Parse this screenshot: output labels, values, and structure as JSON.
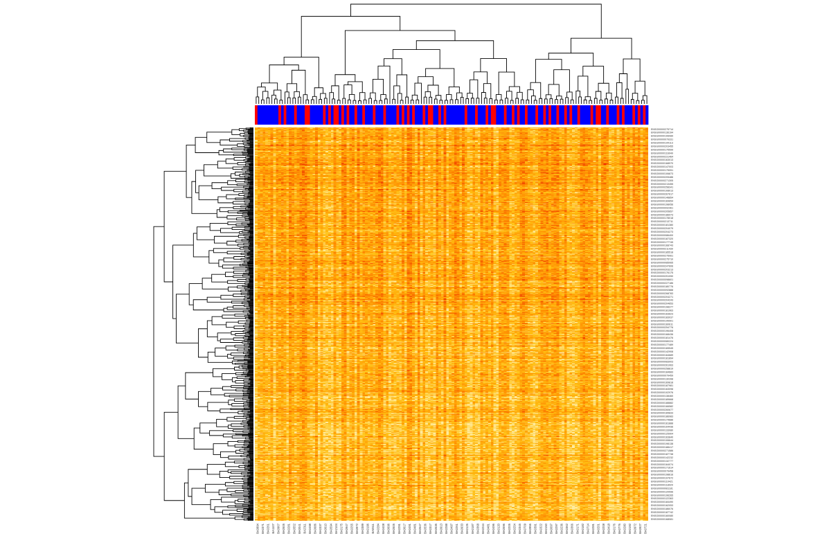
{
  "chart_data": {
    "type": "heatmap",
    "title": "",
    "xlabel": "",
    "ylabel": "",
    "n_columns": 150,
    "n_rows": 600,
    "row_dendrogram": true,
    "column_dendrogram": true,
    "colormap": [
      "#ff0000",
      "#ff7a00",
      "#ffa500",
      "#ffd27a",
      "#fff2cc"
    ],
    "annotation_bar_colors": {
      "group_a": "#ff0000",
      "group_b": "#0000ff"
    },
    "annotation_red_columns": [
      0,
      9,
      11,
      15,
      19,
      20,
      26,
      28,
      30,
      31,
      33,
      35,
      38,
      41,
      45,
      49,
      54,
      56,
      58,
      60,
      64,
      66,
      67,
      70,
      72,
      80,
      84,
      88,
      90,
      91,
      95,
      98,
      100,
      103,
      107,
      110,
      112,
      115,
      118,
      120,
      123,
      128,
      130,
      131,
      134,
      138,
      140,
      144,
      146,
      148
    ],
    "column_labels": [
      "BA0894",
      "BA0371",
      "BA0261",
      "BA1107",
      "BA0967",
      "BA0505",
      "BA0281",
      "BA0552",
      "BA0041",
      "BA2311",
      "BA0498",
      "BA0686",
      "BA0337",
      "BA0610",
      "BA0594",
      "BA2104",
      "BA0175",
      "BA0947",
      "BA0255",
      "BA0972",
      "BA0389",
      "BA0196",
      "BA0511",
      "BA0284",
      "BA0408",
      "BA0696",
      "BA0505",
      "BA0291",
      "BA0617",
      "BA0491",
      "BA0481",
      "BA0547",
      "BA0536",
      "BA0317",
      "BA0535",
      "BA0913",
      "BA0288",
      "BA0497",
      "BA0261",
      "BA0933",
      "BA0126",
      "BA0187",
      "BA0368",
      "BA0244",
      "BA0481",
      "BA0496",
      "BA0120",
      "BA0596",
      "BA0205",
      "BA0254",
      "BA0345",
      "BA0709",
      "BA0956",
      "BA0391",
      "BA0322",
      "BA0150",
      "BA0097",
      "BA0297",
      "BA0236",
      "BA0362",
      "BA0366",
      "BA0171",
      "BA0182",
      "BA0714",
      "BA0281",
      "BA0201",
      "BA0208",
      "BA0418",
      "BA0176",
      "BA0776",
      "BA0280",
      "BA0192",
      "BA0972",
      "BA0927",
      "BA0721"
    ],
    "row_labels": [
      "ENSG00000275714",
      "ENSG00000136194",
      "ENSG00000106089",
      "ENSG00000079331",
      "ENSG00000144113",
      "ENSG00000203455",
      "ENSG00000175599",
      "ENSG00000116049",
      "ENSG00000231464",
      "ENSG00000163013",
      "ENSG00000168970",
      "ENSG00000147003",
      "ENSG00000175051",
      "ENSG00000106873",
      "ENSG00000205486",
      "ENSG00000271305",
      "ENSG00000213455",
      "ENSG00000258341",
      "ENSG00000108013",
      "ENSG00000267617",
      "ENSG00000148854",
      "ENSG00000169654",
      "ENSG00000198056",
      "ENSG00000092461",
      "ENSG00000205657",
      "ENSG00000186973",
      "ENSG00000178018",
      "ENSG00000213711",
      "ENSG00000181380",
      "ENSG00000204079",
      "ENSG00000204273",
      "ENSG00000086400",
      "ENSG00000187320",
      "ENSG00000177745",
      "ENSG00000168743",
      "ENSG00000211430",
      "ENSG00000185518",
      "ENSG00000275061",
      "ENSG00000275710",
      "ENSG00000085065",
      "ENSG00000247606",
      "ENSG00000203213",
      "ENSG00000176175",
      "ENSG00000251050",
      "ENSG00000098601",
      "ENSG00000227186",
      "ENSG00000180776",
      "ENSG00000092888",
      "ENSG00000268783",
      "ENSG00000204271",
      "ENSG00000204243",
      "ENSG00000204653",
      "ENSG00000198377",
      "ENSG00000181963",
      "ENSG00000163623",
      "ENSG00000183037",
      "ENSG00000149901",
      "ENSG00000160611",
      "ENSG00000254776",
      "ENSG00000196408",
      "ENSG00000168436",
      "ENSG00000181476",
      "ENSG00000080224",
      "ENSG00000177489",
      "ENSG00000165545",
      "ENSG00000142908",
      "ENSG00000164689",
      "ENSG00000181894",
      "ENSG00000083003",
      "ENSG00000261063",
      "ENSG00000258819",
      "ENSG00000184683",
      "ENSG00000079459",
      "ENSG00000130398",
      "ENSG00000169818",
      "ENSG00000187981",
      "ENSG00000163098",
      "ENSG00000102976",
      "ENSG00000138460",
      "ENSG00000189668",
      "ENSG00000188882",
      "ENSG00000166582",
      "ENSG00000260677",
      "ENSG00000165833",
      "ENSG00000186983",
      "ENSG00000174686",
      "ENSG00000161888",
      "ENSG00000104436",
      "ENSG00000133080",
      "ENSG00000125904",
      "ENSG00000163840",
      "ENSG00000106644",
      "ENSG00000198138",
      "ENSG00000188417",
      "ENSG00000271586",
      "ENSG00000187738",
      "ENSG00000142232",
      "ENSG00000132777",
      "ENSG00000164074",
      "ENSG00000171614",
      "ENSG00000079458",
      "ENSG00000198616",
      "ENSG00000197672",
      "ENSG00000110421",
      "ENSG00000118920",
      "ENSG00000081181",
      "ENSG00000120596",
      "ENSG00000196265",
      "ENSG00000122363",
      "ENSG00000184490",
      "ENSG00000162053",
      "ENSG00000186076",
      "ENSG00000187742",
      "ENSG00000160080",
      "ENSG00000168081"
    ]
  }
}
